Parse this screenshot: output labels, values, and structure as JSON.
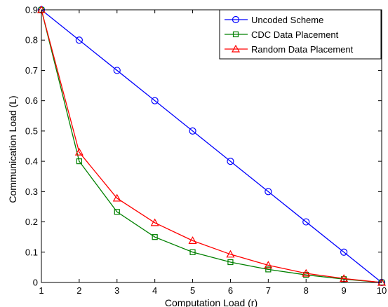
{
  "chart_data": {
    "type": "line",
    "xlabel": "Computation Load (r)",
    "ylabel": "Communication Load (L)",
    "xlim": [
      1,
      10
    ],
    "ylim": [
      0,
      0.9
    ],
    "x_ticks": [
      "1",
      "2",
      "3",
      "4",
      "5",
      "6",
      "7",
      "8",
      "9",
      "10"
    ],
    "y_ticks": [
      "0",
      "0.1",
      "0.2",
      "0.3",
      "0.4",
      "0.5",
      "0.6",
      "0.7",
      "0.8",
      "0.9"
    ],
    "grid": false,
    "legend_position": "top-right",
    "x": [
      1,
      2,
      3,
      4,
      5,
      6,
      7,
      8,
      9,
      10
    ],
    "series": [
      {
        "name": "Uncoded Scheme",
        "color": "#0000ff",
        "marker": "circle",
        "values": [
          0.9,
          0.8,
          0.7,
          0.6,
          0.5,
          0.4,
          0.3,
          0.2,
          0.1,
          0.0
        ]
      },
      {
        "name": "CDC Data Placement",
        "color": "#008000",
        "marker": "square",
        "values": [
          0.9,
          0.4,
          0.233,
          0.15,
          0.1,
          0.067,
          0.043,
          0.025,
          0.011,
          0.0
        ]
      },
      {
        "name": "Random Data Placement",
        "color": "#ff0000",
        "marker": "triangle",
        "values": [
          0.9,
          0.43,
          0.278,
          0.197,
          0.138,
          0.093,
          0.057,
          0.03,
          0.013,
          0.0
        ]
      }
    ]
  }
}
